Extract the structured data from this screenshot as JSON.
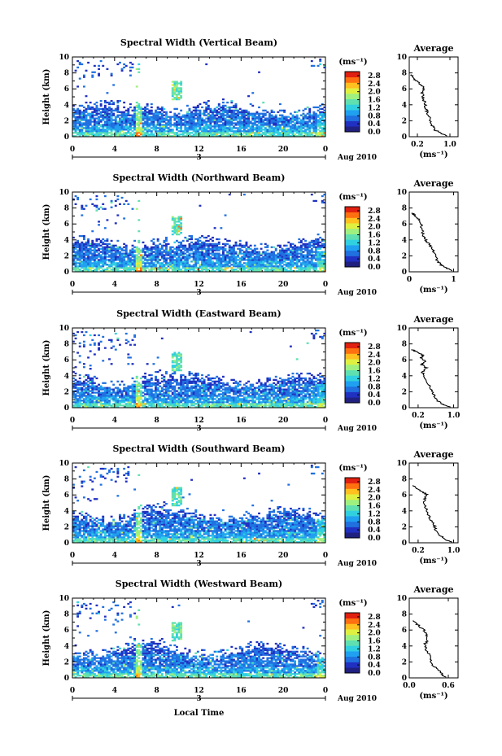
{
  "chart_data": {
    "type": "heatmap",
    "x_axis": {
      "ticks": [
        "0",
        "4",
        "8",
        "12",
        "16",
        "20",
        "0"
      ],
      "xlim": [
        0,
        24
      ],
      "date_marker": "3",
      "date_label": "Aug 2010",
      "label": "Local Time"
    },
    "y_axis": {
      "label": "Height (km)",
      "ticks": [
        "0",
        "2",
        "4",
        "6",
        "8",
        "10"
      ],
      "ylim": [
        0,
        10
      ]
    },
    "colorbar": {
      "unit": "(ms⁻¹)",
      "ticks": [
        "0.0",
        "0.4",
        "0.8",
        "1.2",
        "1.6",
        "2.0",
        "2.4",
        "2.8"
      ],
      "range": [
        0,
        3.0
      ]
    },
    "colors": [
      "#202080",
      "#2030c0",
      "#2070e0",
      "#20a0f0",
      "#30d0e0",
      "#60e0b0",
      "#a0f080",
      "#e0f040",
      "#ffc020",
      "#ff7010",
      "#e02010"
    ],
    "panels": [
      {
        "title": "Spectral Width (Vertical Beam)",
        "avg": {
          "title": "Average",
          "xlabel": "(ms⁻¹)",
          "xticks": [
            "0.2",
            "1.0"
          ],
          "xtick_values": [
            0.2,
            1.0
          ],
          "xlim": [
            0,
            1.2
          ],
          "profile": [
            [
              0.9,
              0.1
            ],
            [
              0.75,
              0.5
            ],
            [
              0.62,
              0.9
            ],
            [
              0.55,
              1.5
            ],
            [
              0.5,
              2.3
            ],
            [
              0.45,
              3.0
            ],
            [
              0.4,
              3.6
            ],
            [
              0.38,
              4.3
            ],
            [
              0.34,
              5.0
            ],
            [
              0.32,
              5.6
            ],
            [
              0.36,
              6.2
            ],
            [
              0.26,
              6.6
            ],
            [
              0.18,
              7.0
            ],
            [
              0.12,
              7.3
            ],
            [
              0.05,
              7.8
            ]
          ]
        }
      },
      {
        "title": "Spectral Width (Northward Beam)",
        "avg": {
          "title": "Average",
          "xlabel": "(ms⁻¹)",
          "xticks": [
            "0",
            "1"
          ],
          "xtick_values": [
            0,
            1
          ],
          "xlim": [
            0,
            1.1
          ],
          "profile": [
            [
              0.98,
              0.1
            ],
            [
              0.82,
              0.5
            ],
            [
              0.7,
              0.9
            ],
            [
              0.62,
              1.5
            ],
            [
              0.58,
              2.3
            ],
            [
              0.5,
              3.0
            ],
            [
              0.42,
              3.6
            ],
            [
              0.35,
              4.2
            ],
            [
              0.3,
              4.8
            ],
            [
              0.28,
              5.4
            ],
            [
              0.26,
              6.0
            ],
            [
              0.2,
              6.6
            ],
            [
              0.14,
              7.0
            ],
            [
              0.06,
              7.4
            ]
          ]
        }
      },
      {
        "title": "Spectral Width (Eastward Beam)",
        "avg": {
          "title": "Average",
          "xlabel": "(ms⁻¹)",
          "xticks": [
            "0.2",
            "1.0"
          ],
          "xtick_values": [
            0.2,
            1.0
          ],
          "xlim": [
            0,
            1.1
          ],
          "profile": [
            [
              0.9,
              0.1
            ],
            [
              0.72,
              0.5
            ],
            [
              0.6,
              1.0
            ],
            [
              0.55,
              1.6
            ],
            [
              0.5,
              2.2
            ],
            [
              0.42,
              3.0
            ],
            [
              0.34,
              3.8
            ],
            [
              0.3,
              4.4
            ],
            [
              0.38,
              5.0
            ],
            [
              0.28,
              5.4
            ],
            [
              0.36,
              5.8
            ],
            [
              0.26,
              6.2
            ],
            [
              0.32,
              6.6
            ],
            [
              0.16,
              7.0
            ],
            [
              0.06,
              7.3
            ]
          ]
        }
      },
      {
        "title": "Spectral Width (Southward Beam)",
        "avg": {
          "title": "Average",
          "xlabel": "(ms⁻¹)",
          "xticks": [
            "0.2",
            "1.0"
          ],
          "xtick_values": [
            0.2,
            1.0
          ],
          "xlim": [
            0,
            1.1
          ],
          "profile": [
            [
              0.95,
              0.1
            ],
            [
              0.8,
              0.5
            ],
            [
              0.68,
              1.0
            ],
            [
              0.6,
              1.6
            ],
            [
              0.56,
              2.2
            ],
            [
              0.48,
              3.0
            ],
            [
              0.4,
              3.8
            ],
            [
              0.36,
              4.6
            ],
            [
              0.34,
              5.4
            ],
            [
              0.4,
              6.0
            ],
            [
              0.3,
              6.4
            ],
            [
              0.18,
              6.8
            ],
            [
              0.08,
              7.2
            ]
          ]
        }
      },
      {
        "title": "Spectral Width (Westward Beam)",
        "avg": {
          "title": "Average",
          "xlabel": "(ms⁻¹)",
          "xticks": [
            "0.0",
            "0.6"
          ],
          "xtick_values": [
            0,
            0.6
          ],
          "xlim": [
            0,
            0.75
          ],
          "profile": [
            [
              0.55,
              0.1
            ],
            [
              0.5,
              0.5
            ],
            [
              0.44,
              1.0
            ],
            [
              0.36,
              1.6
            ],
            [
              0.32,
              2.2
            ],
            [
              0.3,
              3.0
            ],
            [
              0.26,
              3.6
            ],
            [
              0.24,
              4.2
            ],
            [
              0.28,
              4.8
            ],
            [
              0.26,
              5.4
            ],
            [
              0.22,
              6.0
            ],
            [
              0.14,
              6.6
            ],
            [
              0.06,
              7.2
            ]
          ]
        }
      }
    ]
  }
}
